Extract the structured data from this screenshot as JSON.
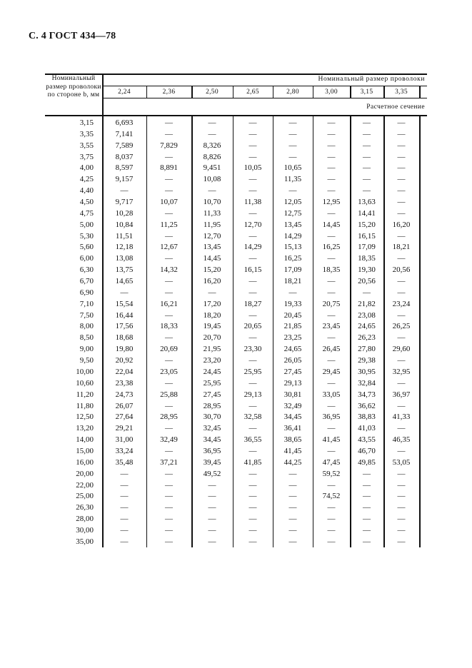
{
  "page_title": "С. 4 ГОСТ 434—78",
  "table": {
    "row_header": "Номинальный размер проволоки по стороне b, мм",
    "col_group_header": "Номинальный размер проволоки",
    "sub_header": "Расчетное сечение",
    "columns": [
      "2,24",
      "2,36",
      "2,50",
      "2,65",
      "2,80",
      "3,00",
      "3,15",
      "3,35"
    ],
    "rows": [
      {
        "b": "3,15",
        "v": [
          "6,693",
          "—",
          "—",
          "—",
          "—",
          "—",
          "—",
          "—"
        ]
      },
      {
        "b": "3,35",
        "v": [
          "7,141",
          "—",
          "—",
          "—",
          "—",
          "—",
          "—",
          "—"
        ]
      },
      {
        "b": "3,55",
        "v": [
          "7,589",
          "7,829",
          "8,326",
          "—",
          "—",
          "—",
          "—",
          "—"
        ]
      },
      {
        "b": "3,75",
        "v": [
          "8,037",
          "—",
          "8,826",
          "—",
          "—",
          "—",
          "—",
          "—"
        ]
      },
      {
        "b": "4,00",
        "v": [
          "8,597",
          "8,891",
          "9,451",
          "10,05",
          "10,65",
          "—",
          "—",
          "—"
        ]
      },
      {
        "b": "4,25",
        "v": [
          "9,157",
          "—",
          "10,08",
          "—",
          "11,35",
          "—",
          "—",
          "—"
        ]
      },
      {
        "b": "4,40",
        "v": [
          "—",
          "—",
          "—",
          "—",
          "—",
          "—",
          "—",
          "—"
        ]
      },
      {
        "b": "4,50",
        "v": [
          "9,717",
          "10,07",
          "10,70",
          "11,38",
          "12,05",
          "12,95",
          "13,63",
          "—"
        ]
      },
      {
        "b": "4,75",
        "v": [
          "10,28",
          "—",
          "11,33",
          "—",
          "12,75",
          "—",
          "14,41",
          "—"
        ]
      },
      {
        "b": "5,00",
        "v": [
          "10,84",
          "11,25",
          "11,95",
          "12,70",
          "13,45",
          "14,45",
          "15,20",
          "16,20"
        ]
      },
      {
        "b": "5,30",
        "v": [
          "11,51",
          "—",
          "12,70",
          "—",
          "14,29",
          "—",
          "16,15",
          "—"
        ]
      },
      {
        "b": "5,60",
        "v": [
          "12,18",
          "12,67",
          "13,45",
          "14,29",
          "15,13",
          "16,25",
          "17,09",
          "18,21"
        ]
      },
      {
        "b": "6,00",
        "v": [
          "13,08",
          "—",
          "14,45",
          "—",
          "16,25",
          "—",
          "18,35",
          "—"
        ]
      },
      {
        "b": "6,30",
        "v": [
          "13,75",
          "14,32",
          "15,20",
          "16,15",
          "17,09",
          "18,35",
          "19,30",
          "20,56"
        ]
      },
      {
        "b": "6,70",
        "v": [
          "14,65",
          "—",
          "16,20",
          "—",
          "18,21",
          "—",
          "20,56",
          "—"
        ]
      },
      {
        "b": "6,90",
        "v": [
          "—",
          "—",
          "—",
          "—",
          "—",
          "—",
          "—",
          "—"
        ]
      },
      {
        "b": "7,10",
        "v": [
          "15,54",
          "16,21",
          "17,20",
          "18,27",
          "19,33",
          "20,75",
          "21,82",
          "23,24"
        ]
      },
      {
        "b": "7,50",
        "v": [
          "16,44",
          "—",
          "18,20",
          "—",
          "20,45",
          "—",
          "23,08",
          "—"
        ]
      },
      {
        "b": "8,00",
        "v": [
          "17,56",
          "18,33",
          "19,45",
          "20,65",
          "21,85",
          "23,45",
          "24,65",
          "26,25"
        ]
      },
      {
        "b": "8,50",
        "v": [
          "18,68",
          "—",
          "20,70",
          "—",
          "23,25",
          "—",
          "26,23",
          "—"
        ]
      },
      {
        "b": "9,00",
        "v": [
          "19,80",
          "20,69",
          "21,95",
          "23,30",
          "24,65",
          "26,45",
          "27,80",
          "29,60"
        ]
      },
      {
        "b": "9,50",
        "v": [
          "20,92",
          "—",
          "23,20",
          "—",
          "26,05",
          "—",
          "29,38",
          "—"
        ]
      },
      {
        "b": "10,00",
        "v": [
          "22,04",
          "23,05",
          "24,45",
          "25,95",
          "27,45",
          "29,45",
          "30,95",
          "32,95"
        ]
      },
      {
        "b": "10,60",
        "v": [
          "23,38",
          "—",
          "25,95",
          "—",
          "29,13",
          "—",
          "32,84",
          "—"
        ]
      },
      {
        "b": "11,20",
        "v": [
          "24,73",
          "25,88",
          "27,45",
          "29,13",
          "30,81",
          "33,05",
          "34,73",
          "36,97"
        ]
      },
      {
        "b": "11,80",
        "v": [
          "26,07",
          "—",
          "28,95",
          "—",
          "32,49",
          "—",
          "36,62",
          "—"
        ]
      },
      {
        "b": "12,50",
        "v": [
          "27,64",
          "28,95",
          "30,70",
          "32,58",
          "34,45",
          "36,95",
          "38,83",
          "41,33"
        ]
      },
      {
        "b": "13,20",
        "v": [
          "29,21",
          "—",
          "32,45",
          "—",
          "36,41",
          "—",
          "41,03",
          "—"
        ]
      },
      {
        "b": "14,00",
        "v": [
          "31,00",
          "32,49",
          "34,45",
          "36,55",
          "38,65",
          "41,45",
          "43,55",
          "46,35"
        ]
      },
      {
        "b": "15,00",
        "v": [
          "33,24",
          "—",
          "36,95",
          "—",
          "41,45",
          "—",
          "46,70",
          "—"
        ]
      },
      {
        "b": "16,00",
        "v": [
          "35,48",
          "37,21",
          "39,45",
          "41,85",
          "44,25",
          "47,45",
          "49,85",
          "53,05"
        ]
      },
      {
        "b": "20,00",
        "v": [
          "—",
          "—",
          "49,52",
          "—",
          "—",
          "59,52",
          "—",
          "—"
        ]
      },
      {
        "b": "22,00",
        "v": [
          "—",
          "—",
          "—",
          "—",
          "—",
          "—",
          "—",
          "—"
        ]
      },
      {
        "b": "25,00",
        "v": [
          "—",
          "—",
          "—",
          "—",
          "—",
          "74,52",
          "—",
          "—"
        ]
      },
      {
        "b": "26,30",
        "v": [
          "—",
          "—",
          "—",
          "—",
          "—",
          "—",
          "—",
          "—"
        ]
      },
      {
        "b": "28,00",
        "v": [
          "—",
          "—",
          "—",
          "—",
          "—",
          "—",
          "—",
          "—"
        ]
      },
      {
        "b": "30,00",
        "v": [
          "—",
          "—",
          "—",
          "—",
          "—",
          "—",
          "—",
          "—"
        ]
      },
      {
        "b": "35,00",
        "v": [
          "—",
          "—",
          "—",
          "—",
          "—",
          "—",
          "—",
          "—"
        ]
      }
    ]
  }
}
